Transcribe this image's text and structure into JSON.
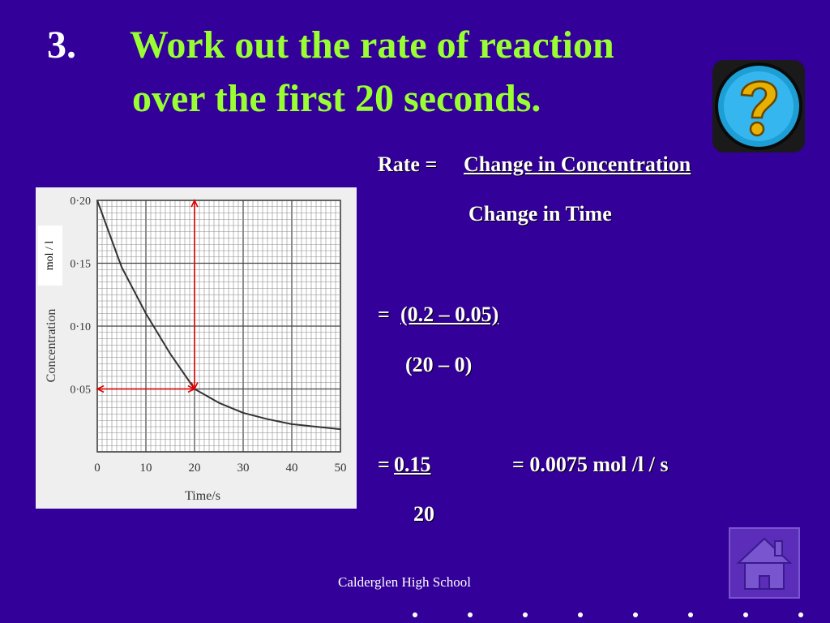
{
  "title": {
    "number": "3.",
    "line1": "Work out the rate of reaction",
    "line2": "over the first 20 seconds."
  },
  "formula": {
    "rate_prefix": "Rate =",
    "numerator": "Change in Concentration",
    "denominator": "Change in Time",
    "step1_prefix": "=",
    "step1_numerator": "(0.2 – 0.05)",
    "step1_denominator": "(20 – 0)",
    "step2_prefix": "=",
    "step2_numerator": "0.15",
    "step2_denominator": "20",
    "result": "= 0.0075 mol /l / s"
  },
  "graph": {
    "unit_label": "mol / l",
    "y_label": "Concentration",
    "x_label": "Time/s",
    "y_ticks": [
      "0·20",
      "0·15",
      "0·10",
      "0·05"
    ],
    "x_ticks": [
      "0",
      "10",
      "20",
      "30",
      "40",
      "50"
    ]
  },
  "chart_data": {
    "type": "line",
    "title": "",
    "xlabel": "Time/s",
    "ylabel": "Concentration",
    "xlim": [
      0,
      50
    ],
    "ylim": [
      0,
      0.2
    ],
    "grid": true,
    "series": [
      {
        "x": [
          0,
          5,
          10,
          15,
          20,
          25,
          30,
          35,
          40,
          45,
          50
        ],
        "values": [
          0.2,
          0.147,
          0.11,
          0.078,
          0.05,
          0.039,
          0.031,
          0.026,
          0.022,
          0.02,
          0.018
        ]
      }
    ],
    "annotations": [
      {
        "type": "arrow",
        "from": [
          20,
          0.05
        ],
        "to": [
          20,
          0.2
        ],
        "color": "#e00000"
      },
      {
        "type": "arrow",
        "from": [
          20,
          0.05
        ],
        "to": [
          0,
          0.05
        ],
        "color": "#e00000"
      }
    ]
  },
  "footer": {
    "text": "Calderglen High School"
  },
  "colors": {
    "background": "#330099",
    "title": "#99ff33",
    "text": "#ffffff",
    "arrow": "#e00000"
  },
  "icons": {
    "help": "question-icon",
    "home": "home-icon"
  }
}
